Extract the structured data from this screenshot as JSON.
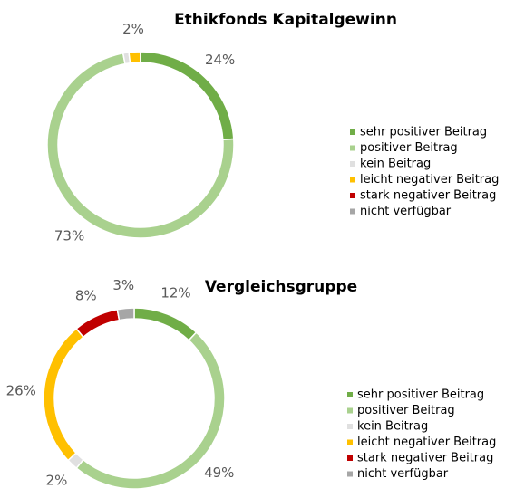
{
  "chart_data": [
    {
      "type": "donut",
      "title": "Ethikfonds Kapitalgewinn",
      "categories": [
        "sehr positiver Beitrag",
        "positiver Beitrag",
        "kein Beitrag",
        "leicht negativer Beitrag",
        "stark negativer Beitrag",
        "nicht verfügbar"
      ],
      "values": [
        24,
        73,
        1,
        2,
        0,
        0
      ],
      "value_labels": [
        "24%",
        "73%",
        null,
        "2%",
        null,
        null
      ],
      "colors": [
        "#70ad47",
        "#a9d18e",
        "#e0e0e0",
        "#ffc000",
        "#c00000",
        "#a6a6a6"
      ],
      "legend": "right"
    },
    {
      "type": "donut",
      "title": "Vergleichsgruppe",
      "categories": [
        "sehr positiver Beitrag",
        "positiver Beitrag",
        "kein Beitrag",
        "leicht negativer Beitrag",
        "stark negativer Beitrag",
        "nicht verfügbar"
      ],
      "values": [
        12,
        49,
        2,
        26,
        8,
        3
      ],
      "value_labels": [
        "12%",
        "49%",
        "2%",
        "26%",
        "8%",
        "3%"
      ],
      "colors": [
        "#70ad47",
        "#a9d18e",
        "#e0e0e0",
        "#ffc000",
        "#c00000",
        "#a6a6a6"
      ],
      "legend": "right"
    }
  ]
}
